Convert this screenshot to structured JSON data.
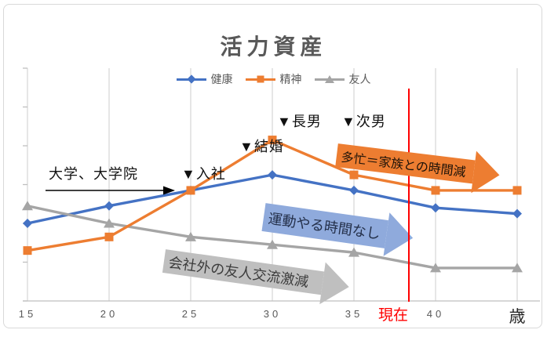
{
  "title": "活力資産",
  "colors": {
    "health_line": "#4472C4",
    "mind_line": "#ED7D31",
    "friend_line": "#A5A5A5",
    "current_line": "#FF0000",
    "busy_arrow_fill": "#ED7D31",
    "no_exercise_arrow_fill": "#8FAADC",
    "friends_arrow_fill": "#BFBFBF",
    "gridline": "#D9D9D9",
    "axis": "#BFBFBF",
    "axis_text": "#595959",
    "title_text": "#595959"
  },
  "chart_data": {
    "type": "line",
    "title": "活力資産",
    "x_categories": [
      "15",
      "20",
      "25",
      "30",
      "35",
      "40",
      "歳"
    ],
    "x_unit": "歳",
    "ylim": [
      0,
      6
    ],
    "y_tick_labels": [],
    "grid": "vertical-only",
    "legend_position": "top",
    "series": [
      {
        "name": "健康",
        "color": "#4472C4",
        "marker": "diamond",
        "values": [
          2.0,
          2.45,
          2.85,
          3.25,
          2.85,
          2.4,
          2.25
        ]
      },
      {
        "name": "精神",
        "color": "#ED7D31",
        "marker": "square",
        "values": [
          1.3,
          1.65,
          2.85,
          4.15,
          3.25,
          2.85,
          2.85
        ]
      },
      {
        "name": "友人",
        "color": "#A5A5A5",
        "marker": "triangle",
        "values": [
          2.45,
          2.0,
          1.65,
          1.45,
          1.25,
          0.85,
          0.85
        ]
      }
    ],
    "annotations": [
      {
        "label": "大学、大学院",
        "type": "text-with-arrow",
        "x_age_range": [
          16,
          24
        ]
      },
      {
        "label": "▼入社",
        "type": "milestone",
        "x_age": 25
      },
      {
        "label": "▼結婚",
        "type": "milestone",
        "x_age": 29
      },
      {
        "label": "▼長男",
        "type": "milestone",
        "x_age": 31
      },
      {
        "label": "▼次男",
        "type": "milestone",
        "x_age": 35
      },
      {
        "label": "多忙＝家族との時間減",
        "type": "fat-arrow",
        "color": "#ED7D31"
      },
      {
        "label": "運動やる時間なし",
        "type": "fat-arrow",
        "color": "#8FAADC"
      },
      {
        "label": "会社外の友人交流激減",
        "type": "fat-arrow",
        "color": "#BFBFBF"
      },
      {
        "label": "現在",
        "type": "vertical-line",
        "x_age": 38.4,
        "color": "#FF0000"
      }
    ]
  }
}
